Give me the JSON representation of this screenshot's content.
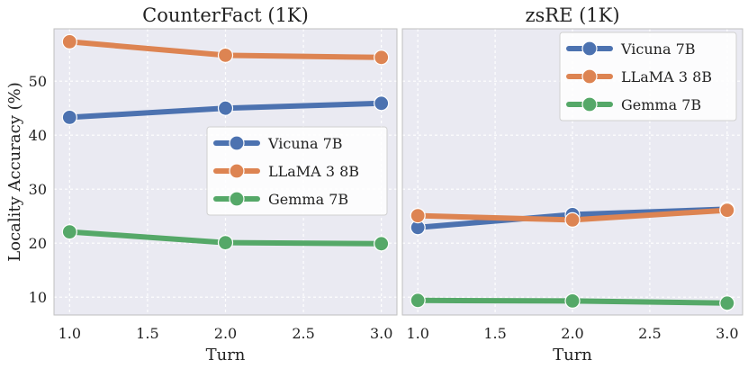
{
  "chart_data": [
    {
      "type": "line",
      "title": "CounterFact (1K)",
      "xlabel": "Turn",
      "ylabel": "Locality Accuracy (%)",
      "x": [
        1.0,
        2.0,
        3.0
      ],
      "xticks": [
        "1.0",
        "1.5",
        "2.0",
        "2.5",
        "3.0"
      ],
      "xlim": [
        0.9,
        3.1
      ],
      "yticks": [
        "10",
        "20",
        "30",
        "40",
        "50"
      ],
      "ylim": [
        6.7,
        59.7
      ],
      "grid": true,
      "legend": "center-right",
      "series": [
        {
          "name": "Vicuna 7B",
          "color": "#4c72b0",
          "values": [
            43.3,
            45.0,
            45.9
          ]
        },
        {
          "name": "LLaMA 3 8B",
          "color": "#dd8452",
          "values": [
            57.3,
            54.8,
            54.4
          ]
        },
        {
          "name": "Gemma 7B",
          "color": "#55a868",
          "values": [
            22.1,
            20.1,
            19.9
          ]
        }
      ]
    },
    {
      "type": "line",
      "title": "zsRE (1K)",
      "xlabel": "Turn",
      "ylabel": "",
      "x": [
        1.0,
        2.0,
        3.0
      ],
      "xticks": [
        "1.0",
        "1.5",
        "2.0",
        "2.5",
        "3.0"
      ],
      "xlim": [
        0.9,
        3.1
      ],
      "yticks": [],
      "ylim": [
        6.7,
        59.7
      ],
      "grid": true,
      "legend": "top-right",
      "series": [
        {
          "name": "Vicuna 7B",
          "color": "#4c72b0",
          "values": [
            22.9,
            25.3,
            26.3
          ]
        },
        {
          "name": "LLaMA 3 8B",
          "color": "#dd8452",
          "values": [
            25.1,
            24.3,
            26.1
          ]
        },
        {
          "name": "Gemma 7B",
          "color": "#55a868",
          "values": [
            9.4,
            9.3,
            8.9
          ]
        }
      ]
    }
  ]
}
